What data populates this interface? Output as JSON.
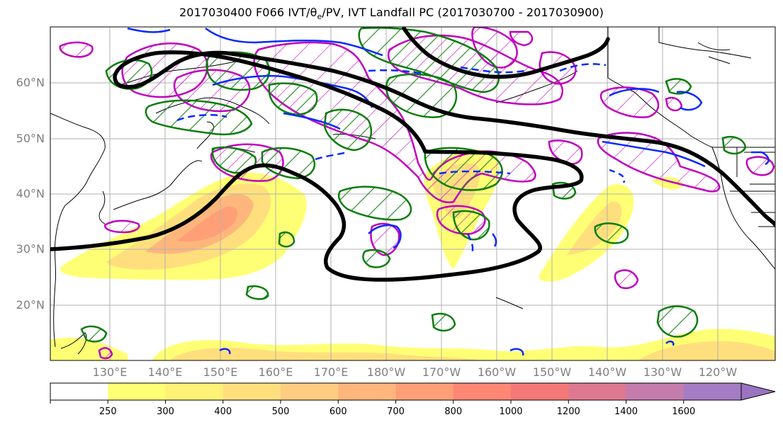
{
  "title": {
    "prefix": "2017030400 F066 IVT/",
    "theta": "θ",
    "theta_sub": "e",
    "suffix": "/PV, IVT Landfall PC (2017030700 - 2017030900)"
  },
  "lat_labels": [
    "60°N",
    "50°N",
    "40°N",
    "30°N",
    "20°N"
  ],
  "lon_labels": [
    "130°E",
    "140°E",
    "150°E",
    "160°E",
    "170°E",
    "180°W",
    "170°W",
    "160°W",
    "150°W",
    "140°W",
    "130°W",
    "120°W"
  ],
  "colorbar": {
    "ticks": [
      "250",
      "300",
      "400",
      "500",
      "600",
      "700",
      "800",
      "1000",
      "1200",
      "1400",
      "1600"
    ],
    "colors": [
      "#ffff75",
      "#fff175",
      "#ffdf7d",
      "#ffcc80",
      "#ffb67c",
      "#ff9f78",
      "#ff8775",
      "#f47878",
      "#de7890",
      "#c47cac",
      "#a47cc4"
    ]
  },
  "colors": {
    "ivt_contour": "#000000",
    "pv": "#008000",
    "theta_e_solid": "#0000ff",
    "magenta": "#bf00bf",
    "coast": "#000000"
  }
}
